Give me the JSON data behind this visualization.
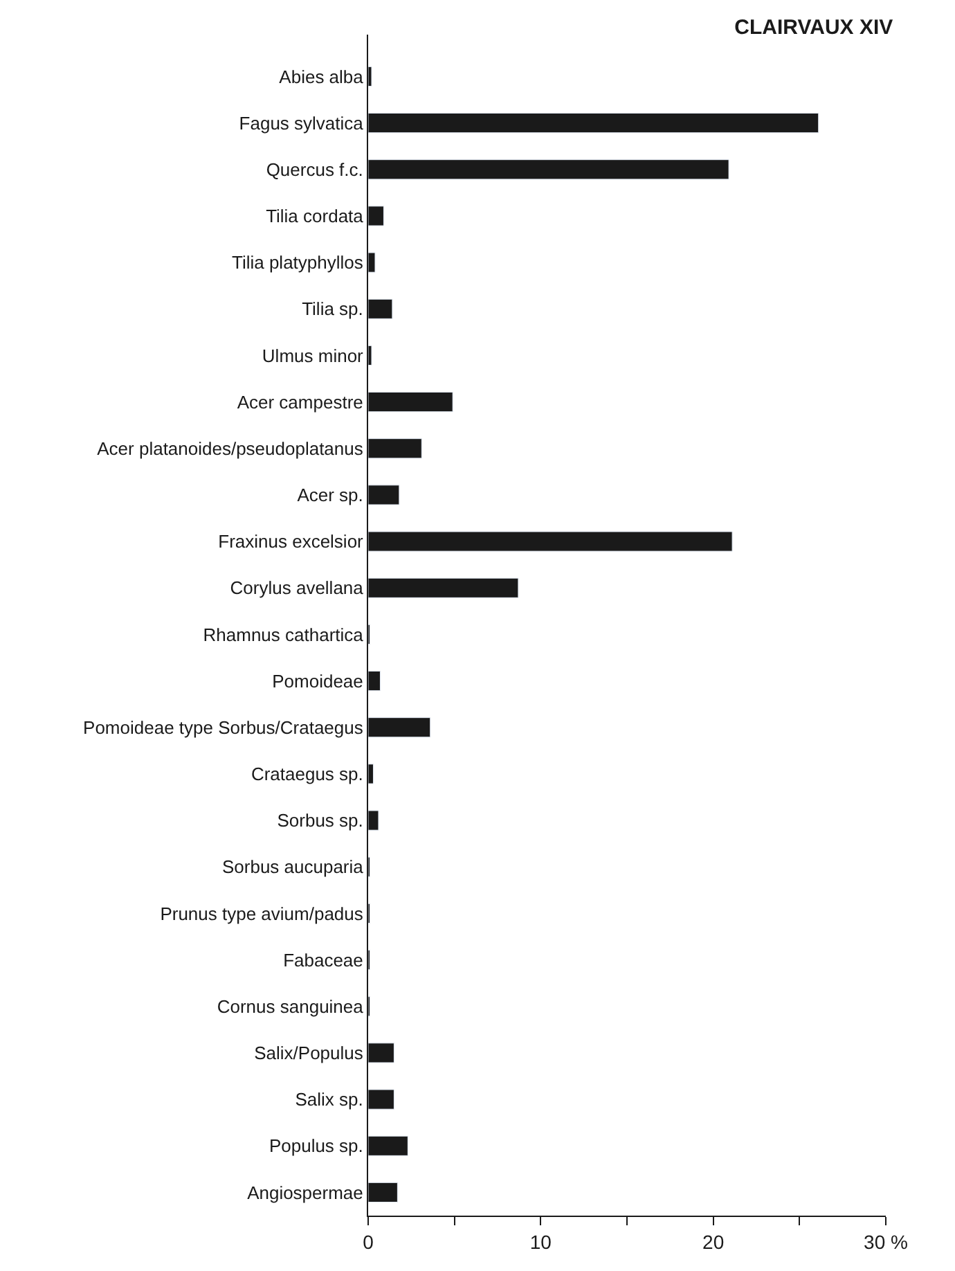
{
  "chart_data": {
    "type": "bar",
    "orientation": "horizontal",
    "title": "CLAIRVAUX XIV",
    "categories": [
      "Abies alba",
      "Fagus sylvatica",
      "Quercus f.c.",
      "Tilia cordata",
      "Tilia platyphyllos",
      "Tilia sp.",
      "Ulmus minor",
      "Acer campestre",
      "Acer platanoides/pseudoplatanus",
      "Acer sp.",
      "Fraxinus excelsior",
      "Corylus avellana",
      "Rhamnus cathartica",
      "Pomoideae",
      "Pomoideae type Sorbus/Crataegus",
      "Crataegus sp.",
      "Sorbus sp.",
      "Sorbus aucuparia",
      "Prunus type avium/padus",
      "Fabaceae",
      "Cornus sanguinea",
      "Salix/Populus",
      "Salix sp.",
      "Populus sp.",
      "Angiospermae"
    ],
    "values": [
      0.2,
      26.1,
      20.9,
      0.9,
      0.4,
      1.4,
      0.2,
      4.9,
      3.1,
      1.8,
      21.1,
      8.7,
      0.1,
      0.7,
      3.6,
      0.3,
      0.6,
      0.1,
      0.1,
      0.1,
      0.1,
      1.5,
      1.5,
      2.3,
      1.7
    ],
    "color": "#1a1a1a",
    "xlim": [
      0,
      30
    ],
    "xticks": [
      0,
      {
        "value": 5,
        "label": null
      },
      10,
      {
        "value": 15,
        "label": null
      },
      20,
      {
        "value": 25,
        "label": null
      },
      {
        "value": 30,
        "label": "30 %"
      }
    ],
    "grid": false
  }
}
